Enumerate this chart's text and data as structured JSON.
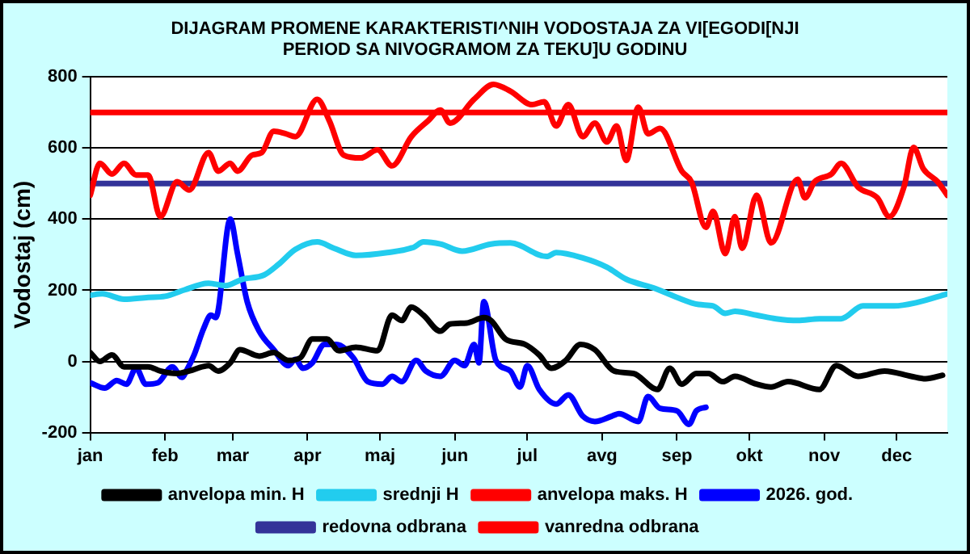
{
  "chart_data": {
    "type": "line",
    "title": "DIJAGRAM PROMENE KARAKTERISTI^NIH VODOSTAJA ZA VI[EGODI[NJI PERIOD SA NIVOGRAMOM ZA TEKU]U GODINU",
    "ylabel": "Vodostaj (cm)",
    "xlim": [
      "--01-01",
      "--12-22"
    ],
    "xticks": [
      {
        "value": "--01-01",
        "label": "jan"
      },
      {
        "value": "--02-01",
        "label": "feb"
      },
      {
        "value": "--03-01",
        "label": "mar"
      },
      {
        "value": "--04-01",
        "label": "apr"
      },
      {
        "value": "--05-01",
        "label": "maj"
      },
      {
        "value": "--06-01",
        "label": "jun"
      },
      {
        "value": "--07-01",
        "label": "jul"
      },
      {
        "value": "--08-01",
        "label": "avg"
      },
      {
        "value": "--09-01",
        "label": "sep"
      },
      {
        "value": "--10-01",
        "label": "okt"
      },
      {
        "value": "--11-01",
        "label": "nov"
      },
      {
        "value": "--12-01",
        "label": "dec"
      }
    ],
    "ylim": [
      -200,
      800
    ],
    "yticks": [
      -200,
      0,
      200,
      400,
      600,
      800
    ],
    "grid": "y",
    "legend": "bottom",
    "marker": "none",
    "line_style": "solid",
    "series": [
      {
        "name": "anvelopa min. H",
        "color": "#000000",
        "x": [
          "--01-01",
          "--01-05",
          "--01-10",
          "--01-15",
          "--01-25",
          "--01-30",
          "--02-06",
          "--02-11",
          "--02-19",
          "--02-23",
          "--02-28",
          "--03-04",
          "--03-12",
          "--03-18",
          "--03-24",
          "--03-29",
          "--04-03",
          "--04-09",
          "--04-14",
          "--04-21",
          "--04-30",
          "--05-06",
          "--05-10",
          "--05-14",
          "--05-19",
          "--05-26",
          "--05-30",
          "--06-06",
          "--06-13",
          "--06-16",
          "--06-22",
          "--06-30",
          "--07-06",
          "--07-11",
          "--07-17",
          "--07-23",
          "--07-29",
          "--08-06",
          "--08-14",
          "--08-24",
          "--08-29",
          "--09-03",
          "--09-09",
          "--09-14",
          "--09-20",
          "--09-25",
          "--10-04",
          "--10-10",
          "--10-17",
          "--10-30",
          "--11-06",
          "--11-15",
          "--11-26",
          "--12-07",
          "--12-13",
          "--12-20"
        ],
        "values": [
          25,
          0,
          18,
          -15,
          -15,
          -27,
          -34,
          -27,
          -12,
          -27,
          -4,
          33,
          15,
          25,
          3,
          10,
          63,
          63,
          30,
          40,
          30,
          130,
          115,
          153,
          130,
          85,
          105,
          108,
          123,
          115,
          63,
          48,
          18,
          -19,
          3,
          48,
          33,
          -27,
          -34,
          -79,
          -19,
          -64,
          -34,
          -34,
          -57,
          -42,
          -64,
          -72,
          -57,
          -79,
          -12,
          -42,
          -27,
          -42,
          -49,
          -39
        ]
      },
      {
        "name": "srednji H",
        "color": "#22ccee",
        "x": [
          "--01-01",
          "--01-06",
          "--01-15",
          "--01-25",
          "--02-01",
          "--02-09",
          "--02-19",
          "--02-26",
          "--03-05",
          "--03-14",
          "--03-20",
          "--03-27",
          "--04-05",
          "--04-12",
          "--04-21",
          "--05-04",
          "--05-15",
          "--05-19",
          "--05-26",
          "--06-04",
          "--06-16",
          "--06-24",
          "--07-09",
          "--07-13",
          "--07-24",
          "--08-03",
          "--08-11",
          "--08-23",
          "--09-01",
          "--09-10",
          "--09-16",
          "--09-21",
          "--09-25",
          "--10-04",
          "--10-12",
          "--10-21",
          "--10-30",
          "--11-08",
          "--11-17",
          "--11-30",
          "--12-09",
          "--12-22"
        ],
        "values": [
          186,
          190,
          175,
          180,
          183,
          201,
          220,
          213,
          231,
          243,
          273,
          315,
          336,
          318,
          298,
          306,
          321,
          336,
          330,
          310,
          330,
          333,
          295,
          306,
          291,
          265,
          231,
          205,
          180,
          160,
          156,
          135,
          141,
          130,
          120,
          115,
          120,
          120,
          156,
          156,
          165,
          190
        ]
      },
      {
        "name": "anvelopa maks. H",
        "color": "#ff0000",
        "x": [
          "--01-01",
          "--01-05",
          "--01-10",
          "--01-15",
          "--01-20",
          "--01-25",
          "--01-30",
          "--02-06",
          "--02-11",
          "--02-19",
          "--02-23",
          "--02-28",
          "--03-03",
          "--03-09",
          "--03-13",
          "--03-18",
          "--03-23",
          "--03-27",
          "--04-05",
          "--04-10",
          "--04-16",
          "--04-23",
          "--04-30",
          "--05-06",
          "--05-14",
          "--05-21",
          "--05-26",
          "--05-30",
          "--06-09",
          "--06-17",
          "--06-24",
          "--07-03",
          "--07-08",
          "--07-13",
          "--07-18",
          "--07-24",
          "--07-29",
          "--08-03",
          "--08-07",
          "--08-11",
          "--08-16",
          "--08-20",
          "--08-25",
          "--09-03",
          "--09-07",
          "--09-13",
          "--09-16",
          "--09-21",
          "--09-25",
          "--09-28",
          "--10-04",
          "--10-10",
          "--10-21",
          "--10-24",
          "--10-28",
          "--11-04",
          "--11-08",
          "--11-15",
          "--11-23",
          "--11-28",
          "--12-04",
          "--12-08",
          "--12-12",
          "--12-18",
          "--12-22"
        ],
        "values": [
          467,
          557,
          527,
          557,
          524,
          524,
          407,
          505,
          482,
          587,
          535,
          557,
          535,
          580,
          587,
          647,
          640,
          632,
          737,
          677,
          580,
          572,
          595,
          550,
          632,
          677,
          707,
          670,
          737,
          779,
          760,
          722,
          730,
          662,
          722,
          632,
          670,
          617,
          662,
          565,
          715,
          640,
          655,
          535,
          505,
          377,
          422,
          303,
          407,
          318,
          467,
          333,
          512,
          460,
          505,
          527,
          557,
          490,
          460,
          407,
          490,
          602,
          542,
          505,
          467
        ]
      },
      {
        "name": "2026. god.",
        "color": "#0000ff",
        "x": [
          "--01-01",
          "--01-07",
          "--01-12",
          "--01-16",
          "--01-20",
          "--01-24",
          "--01-29",
          "--02-04",
          "--02-08",
          "--02-10",
          "--02-13",
          "--02-17",
          "--02-20",
          "--02-22",
          "--02-28",
          "--03-03",
          "--03-07",
          "--03-12",
          "--03-18",
          "--03-24",
          "--03-27",
          "--03-30",
          "--04-03",
          "--04-08",
          "--04-13",
          "--04-20",
          "--04-26",
          "--05-02",
          "--05-06",
          "--05-10",
          "--05-16",
          "--05-20",
          "--05-26",
          "--06-01",
          "--06-05",
          "--06-09",
          "--06-11",
          "--06-13",
          "--06-18",
          "--06-24",
          "--06-28",
          "--07-01",
          "--07-06",
          "--07-13",
          "--07-18",
          "--07-24",
          "--07-29",
          "--08-05",
          "--08-08",
          "--08-16",
          "--08-20",
          "--08-25",
          "--09-01",
          "--09-06",
          "--09-09",
          "--09-13"
        ],
        "values": [
          -60,
          -75,
          -54,
          -64,
          -19,
          -64,
          -60,
          -15,
          -45,
          -24,
          18,
          93,
          130,
          123,
          400,
          303,
          168,
          85,
          33,
          -12,
          6,
          -19,
          -4,
          48,
          48,
          10,
          -57,
          -64,
          -42,
          -57,
          3,
          -27,
          -42,
          3,
          -12,
          48,
          -4,
          168,
          3,
          -27,
          -72,
          -12,
          -79,
          -120,
          -94,
          -154,
          -169,
          -154,
          -147,
          -169,
          -99,
          -132,
          -139,
          -177,
          -139,
          -129
        ]
      },
      {
        "name": "redovna odbrana",
        "color": "#333399",
        "x": [
          "--01-01",
          "--12-22"
        ],
        "values": [
          500,
          500
        ]
      },
      {
        "name": "vanredna odbrana",
        "color": "#ff0000",
        "x": [
          "--01-01",
          "--12-22"
        ],
        "values": [
          700,
          700
        ]
      }
    ]
  }
}
